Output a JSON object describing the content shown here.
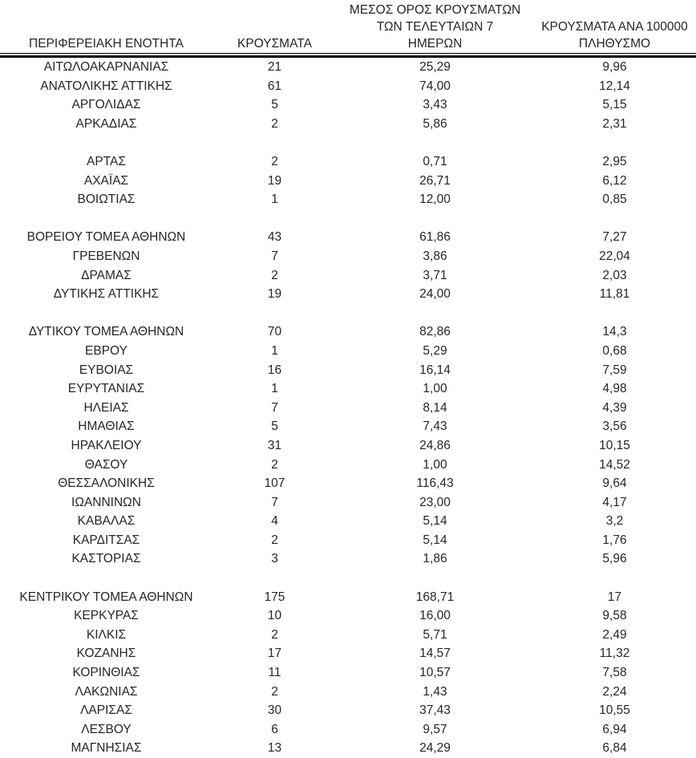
{
  "header": {
    "col1": "ΠΕΡΙΦΕΡΕΙΑΚΗ ΕΝΟΤΗΤΑ",
    "col2": "ΚΡΟΥΣΜΑΤΑ",
    "col3": "ΜΕΣΟΣ ΟΡΟΣ ΚΡΟΥΣΜΑΤΩΝ\nΤΩΝ ΤΕΛΕΥΤΑΙΩΝ 7\nΗΜΕΡΩΝ",
    "col4": "ΚΡΟΥΣΜΑΤΑ ΑΝΑ 100000\nΠΛΗΘΥΣΜΟ"
  },
  "colors": {
    "text": "#262626",
    "rule": "#000000",
    "background": "#ffffff"
  },
  "chart_data": {
    "type": "table",
    "columns": [
      "ΠΕΡΙΦΕΡΕΙΑΚΗ ΕΝΟΤΗΤΑ",
      "ΚΡΟΥΣΜΑΤΑ",
      "ΜΕΣΟΣ ΟΡΟΣ ΚΡΟΥΣΜΑΤΩΝ ΤΩΝ ΤΕΛΕΥΤΑΙΩΝ 7 ΗΜΕΡΩΝ",
      "ΚΡΟΥΣΜΑΤΑ ΑΝΑ 100000 ΠΛΗΘΥΣΜΟ"
    ],
    "decimal_separator": ",",
    "rows": [
      [
        "ΑΙΤΩΛΟΑΚΑΡΝΑΝΙΑΣ",
        "21",
        "25,29",
        "9,96"
      ],
      [
        "ΑΝΑΤΟΛΙΚΗΣ ΑΤΤΙΚΗΣ",
        "61",
        "74,00",
        "12,14"
      ],
      [
        "ΑΡΓΟΛΙΔΑΣ",
        "5",
        "3,43",
        "5,15"
      ],
      [
        "ΑΡΚΑΔΙΑΣ",
        "2",
        "5,86",
        "2,31"
      ],
      null,
      [
        "ΑΡΤΑΣ",
        "2",
        "0,71",
        "2,95"
      ],
      [
        "ΑΧΑΪΑΣ",
        "19",
        "26,71",
        "6,12"
      ],
      [
        "ΒΟΙΩΤΙΑΣ",
        "1",
        "12,00",
        "0,85"
      ],
      null,
      [
        "ΒΟΡΕΙΟΥ ΤΟΜΕΑ ΑΘΗΝΩΝ",
        "43",
        "61,86",
        "7,27"
      ],
      [
        "ΓΡΕΒΕΝΩΝ",
        "7",
        "3,86",
        "22,04"
      ],
      [
        "ΔΡΑΜΑΣ",
        "2",
        "3,71",
        "2,03"
      ],
      [
        "ΔΥΤΙΚΗΣ ΑΤΤΙΚΗΣ",
        "19",
        "24,00",
        "11,81"
      ],
      null,
      [
        "ΔΥΤΙΚΟΥ ΤΟΜΕΑ ΑΘΗΝΩΝ",
        "70",
        "82,86",
        "14,3"
      ],
      [
        "ΕΒΡΟΥ",
        "1",
        "5,29",
        "0,68"
      ],
      [
        "ΕΥΒΟΙΑΣ",
        "16",
        "16,14",
        "7,59"
      ],
      [
        "ΕΥΡΥΤΑΝΙΑΣ",
        "1",
        "1,00",
        "4,98"
      ],
      [
        "ΗΛΕΙΑΣ",
        "7",
        "8,14",
        "4,39"
      ],
      [
        "ΗΜΑΘΙΑΣ",
        "5",
        "7,43",
        "3,56"
      ],
      [
        "ΗΡΑΚΛΕΙΟΥ",
        "31",
        "24,86",
        "10,15"
      ],
      [
        "ΘΑΣΟΥ",
        "2",
        "1,00",
        "14,52"
      ],
      [
        "ΘΕΣΣΑΛΟΝΙΚΗΣ",
        "107",
        "116,43",
        "9,64"
      ],
      [
        "ΙΩΑΝΝΙΝΩΝ",
        "7",
        "23,00",
        "4,17"
      ],
      [
        "ΚΑΒΑΛΑΣ",
        "4",
        "5,14",
        "3,2"
      ],
      [
        "ΚΑΡΔΙΤΣΑΣ",
        "2",
        "5,14",
        "1,76"
      ],
      [
        "ΚΑΣΤΟΡΙΑΣ",
        "3",
        "1,86",
        "5,96"
      ],
      null,
      [
        "ΚΕΝΤΡΙΚΟΥ ΤΟΜΕΑ ΑΘΗΝΩΝ",
        "175",
        "168,71",
        "17"
      ],
      [
        "ΚΕΡΚΥΡΑΣ",
        "10",
        "16,00",
        "9,58"
      ],
      [
        "ΚΙΛΚΙΣ",
        "2",
        "5,71",
        "2,49"
      ],
      [
        "ΚΟΖΑΝΗΣ",
        "17",
        "14,57",
        "11,32"
      ],
      [
        "ΚΟΡΙΝΘΙΑΣ",
        "11",
        "10,57",
        "7,58"
      ],
      [
        "ΛΑΚΩΝΙΑΣ",
        "2",
        "1,43",
        "2,24"
      ],
      [
        "ΛΑΡΙΣΑΣ",
        "30",
        "37,43",
        "10,55"
      ],
      [
        "ΛΕΣΒΟΥ",
        "6",
        "9,57",
        "6,94"
      ],
      [
        "ΜΑΓΝΗΣΙΑΣ",
        "13",
        "24,29",
        "6,84"
      ]
    ]
  }
}
